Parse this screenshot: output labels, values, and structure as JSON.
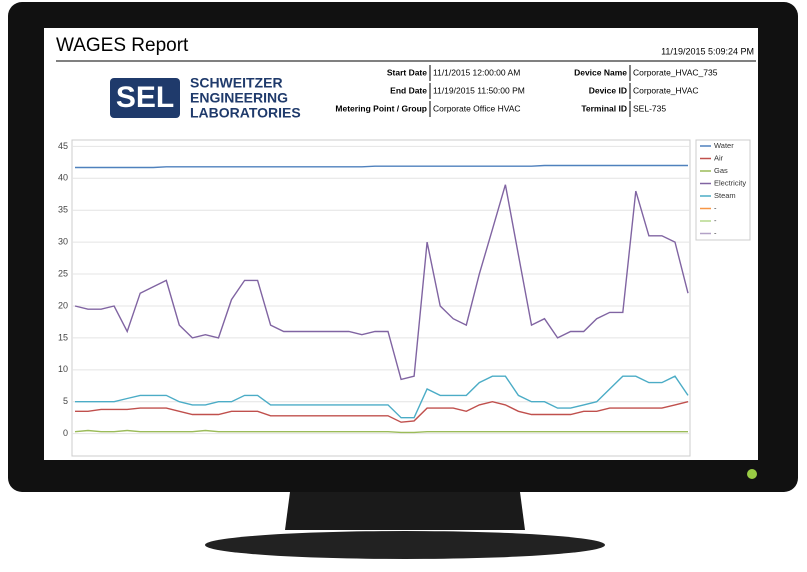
{
  "report": {
    "title": "WAGES Report",
    "timestamp": "11/19/2015 5:09:24 PM",
    "logo": {
      "mark": "SEL",
      "lines": [
        "SCHWEITZER",
        "ENGINEERING",
        "LABORATORIES"
      ]
    },
    "fields_left": [
      {
        "label": "Start Date",
        "value": "11/1/2015 12:00:00 AM"
      },
      {
        "label": "End Date",
        "value": "11/19/2015 11:50:00 PM"
      },
      {
        "label": "Metering Point / Group",
        "value": "Corporate Office HVAC"
      }
    ],
    "fields_right": [
      {
        "label": "Device Name",
        "value": "Corporate_HVAC_735"
      },
      {
        "label": "Device ID",
        "value": "Corporate_HVAC"
      },
      {
        "label": "Terminal ID",
        "value": "SEL-735"
      }
    ]
  },
  "chart_data": {
    "type": "line",
    "ylim": [
      -3.5,
      46
    ],
    "yticks": [
      0,
      5,
      10,
      15,
      20,
      25,
      30,
      35,
      40,
      45
    ],
    "grid": true,
    "series": [
      {
        "name": "Water",
        "color": "#4f81bd",
        "values": [
          41.7,
          41.7,
          41.7,
          41.7,
          41.7,
          41.7,
          41.7,
          41.8,
          41.8,
          41.8,
          41.8,
          41.8,
          41.8,
          41.8,
          41.8,
          41.8,
          41.8,
          41.8,
          41.8,
          41.8,
          41.8,
          41.8,
          41.8,
          41.9,
          41.9,
          41.9,
          41.9,
          41.9,
          41.9,
          41.9,
          41.9,
          41.9,
          41.9,
          41.9,
          41.9,
          41.9,
          42,
          42,
          42,
          42,
          42,
          42,
          42,
          42,
          42,
          42,
          42,
          42
        ]
      },
      {
        "name": "Air",
        "color": "#c0504d",
        "values": [
          3.5,
          3.5,
          3.8,
          3.8,
          3.8,
          4,
          4,
          4,
          3.5,
          3,
          3,
          3,
          3.5,
          3.5,
          3.5,
          2.8,
          2.8,
          2.8,
          2.8,
          2.8,
          2.8,
          2.8,
          2.8,
          2.8,
          2.8,
          1.8,
          2,
          4,
          4,
          4,
          3.5,
          4.5,
          5,
          4.5,
          3.5,
          3,
          3,
          3,
          3,
          3.5,
          3.5,
          4,
          4,
          4,
          4,
          4,
          4.5,
          5
        ]
      },
      {
        "name": "Gas",
        "color": "#9bbb59",
        "values": [
          0.3,
          0.5,
          0.3,
          0.3,
          0.5,
          0.3,
          0.3,
          0.3,
          0.3,
          0.3,
          0.5,
          0.3,
          0.3,
          0.3,
          0.3,
          0.3,
          0.3,
          0.3,
          0.3,
          0.3,
          0.3,
          0.3,
          0.3,
          0.3,
          0.3,
          0.2,
          0.2,
          0.3,
          0.3,
          0.3,
          0.3,
          0.3,
          0.3,
          0.3,
          0.3,
          0.3,
          0.3,
          0.3,
          0.3,
          0.3,
          0.3,
          0.3,
          0.3,
          0.3,
          0.3,
          0.3,
          0.3,
          0.3
        ]
      },
      {
        "name": "Electricity",
        "color": "#8064a2",
        "values": [
          20,
          19.5,
          19.5,
          20,
          16,
          22,
          23,
          24,
          17,
          15,
          15.5,
          15,
          21,
          24,
          24,
          17,
          16,
          16,
          16,
          16,
          16,
          16,
          15.5,
          16,
          16,
          8.5,
          9,
          30,
          20,
          18,
          17,
          25,
          32,
          39,
          28,
          17,
          18,
          15,
          16,
          16,
          18,
          19,
          19,
          38,
          31,
          31,
          30,
          22
        ]
      },
      {
        "name": "Steam",
        "color": "#4bacc6",
        "values": [
          5,
          5,
          5,
          5,
          5.5,
          6,
          6,
          6,
          5,
          4.5,
          4.5,
          5,
          5,
          6,
          6,
          4.5,
          4.5,
          4.5,
          4.5,
          4.5,
          4.5,
          4.5,
          4.5,
          4.5,
          4.5,
          2.5,
          2.5,
          7,
          6,
          6,
          6,
          8,
          9,
          9,
          6,
          5,
          5,
          4,
          4,
          4.5,
          5,
          7,
          9,
          9,
          8,
          8,
          9,
          6
        ]
      },
      {
        "name": "-",
        "color": "#f79646",
        "values": [
          null,
          null,
          null,
          null,
          null,
          null,
          null,
          null,
          null,
          null,
          null,
          null,
          null,
          null,
          null,
          null,
          null,
          null,
          null,
          null,
          null,
          null,
          null,
          null,
          null,
          null,
          null,
          null,
          null,
          null,
          null,
          null,
          null,
          null,
          null,
          null,
          null,
          null,
          null,
          null,
          null,
          null,
          null,
          null,
          null,
          null,
          null,
          null
        ]
      },
      {
        "name": "-",
        "color": "#b5d98c",
        "values": [
          null,
          null,
          null,
          null,
          null,
          null,
          null,
          null,
          null,
          null,
          null,
          null,
          null,
          null,
          null,
          null,
          null,
          null,
          null,
          null,
          null,
          null,
          null,
          null,
          null,
          null,
          null,
          null,
          null,
          null,
          null,
          null,
          null,
          null,
          null,
          null,
          null,
          null,
          null,
          null,
          null,
          null,
          null,
          null,
          null,
          null,
          null,
          null
        ]
      },
      {
        "name": "-",
        "color": "#b3a2c7",
        "values": [
          null,
          null,
          null,
          null,
          null,
          null,
          null,
          null,
          null,
          null,
          null,
          null,
          null,
          null,
          null,
          null,
          null,
          null,
          null,
          null,
          null,
          null,
          null,
          null,
          null,
          null,
          null,
          null,
          null,
          null,
          null,
          null,
          null,
          null,
          null,
          null,
          null,
          null,
          null,
          null,
          null,
          null,
          null,
          null,
          null,
          null,
          null,
          null
        ]
      }
    ]
  }
}
